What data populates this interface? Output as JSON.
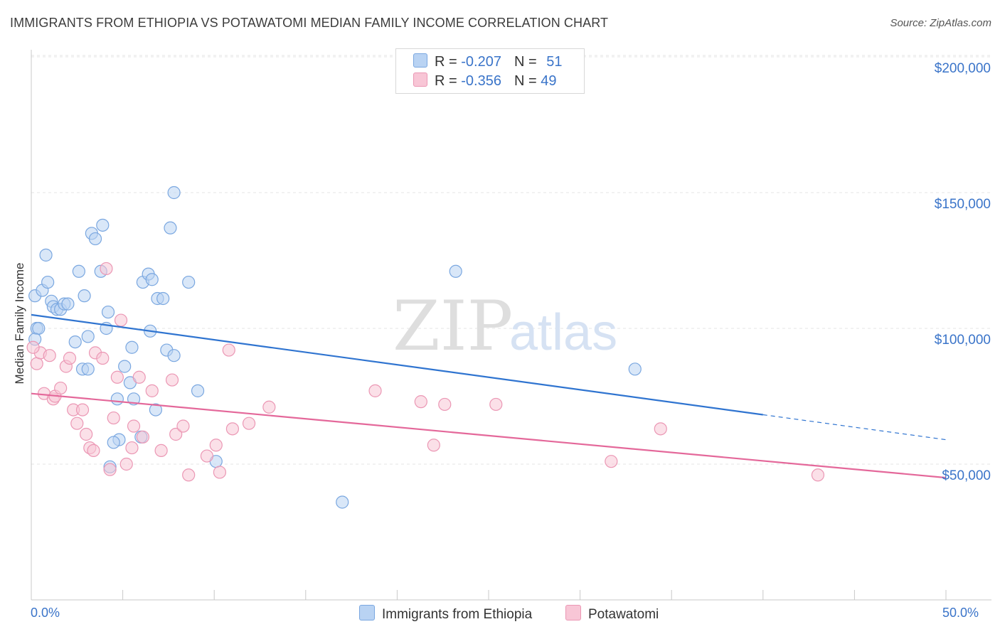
{
  "header": {
    "title": "IMMIGRANTS FROM ETHIOPIA VS POTAWATOMI MEDIAN FAMILY INCOME CORRELATION CHART",
    "source": "Source: ZipAtlas.com"
  },
  "watermark": {
    "zip": "ZIP",
    "atlas": "atlas"
  },
  "legend": {
    "rows": [
      {
        "r_label": "R = ",
        "r_value": "-0.207",
        "n_label": "N = ",
        "n_value": "51"
      },
      {
        "r_label": "R = ",
        "r_value": "-0.356",
        "n_label": "N = ",
        "n_value": "49"
      }
    ]
  },
  "colors": {
    "blue_fill": "#b9d3f3",
    "blue_stroke": "#7aa7e0",
    "blue_line": "#2f74d0",
    "pink_fill": "#f8c6d6",
    "pink_stroke": "#eb97b4",
    "pink_line": "#e4689a",
    "tick_text": "#3a74c9",
    "grid": "#e6e6e6"
  },
  "chart_data": {
    "type": "scatter",
    "title": "IMMIGRANTS FROM ETHIOPIA VS POTAWATOMI MEDIAN FAMILY INCOME CORRELATION CHART",
    "xlabel": "",
    "ylabel": "Median Family Income",
    "xlim": [
      0,
      50
    ],
    "ylim": [
      0,
      210000
    ],
    "x_tick_labels": [
      "0.0%",
      "50.0%"
    ],
    "y_ticks": [
      50000,
      100000,
      150000,
      200000
    ],
    "y_tick_labels": [
      "$50,000",
      "$100,000",
      "$150,000",
      "$200,000"
    ],
    "grid": true,
    "legend_position": "top-center",
    "series": [
      {
        "name": "Immigrants from Ethiopia",
        "color": "#b9d3f3",
        "points": [
          [
            0.2,
            112000
          ],
          [
            0.3,
            100000
          ],
          [
            0.4,
            100000
          ],
          [
            0.6,
            114000
          ],
          [
            0.8,
            127000
          ],
          [
            0.9,
            117000
          ],
          [
            1.1,
            110000
          ],
          [
            1.2,
            108000
          ],
          [
            1.4,
            107000
          ],
          [
            1.6,
            107000
          ],
          [
            1.8,
            109000
          ],
          [
            2.0,
            109000
          ],
          [
            2.4,
            95000
          ],
          [
            2.8,
            85000
          ],
          [
            2.9,
            112000
          ],
          [
            3.1,
            97000
          ],
          [
            2.6,
            121000
          ],
          [
            3.3,
            135000
          ],
          [
            3.5,
            133000
          ],
          [
            3.8,
            121000
          ],
          [
            3.9,
            138000
          ],
          [
            4.1,
            100000
          ],
          [
            4.2,
            106000
          ],
          [
            4.7,
            74000
          ],
          [
            4.8,
            59000
          ],
          [
            4.5,
            58000
          ],
          [
            5.1,
            86000
          ],
          [
            5.4,
            80000
          ],
          [
            5.5,
            93000
          ],
          [
            5.6,
            74000
          ],
          [
            6.0,
            60000
          ],
          [
            6.1,
            117000
          ],
          [
            6.4,
            120000
          ],
          [
            6.5,
            99000
          ],
          [
            6.6,
            118000
          ],
          [
            6.8,
            70000
          ],
          [
            6.9,
            111000
          ],
          [
            7.2,
            111000
          ],
          [
            7.4,
            92000
          ],
          [
            7.6,
            137000
          ],
          [
            7.8,
            90000
          ],
          [
            7.8,
            150000
          ],
          [
            8.6,
            117000
          ],
          [
            9.1,
            77000
          ],
          [
            10.1,
            51000
          ],
          [
            4.3,
            49000
          ],
          [
            17.0,
            36000
          ],
          [
            23.2,
            121000
          ],
          [
            33.0,
            85000
          ],
          [
            3.1,
            85000
          ],
          [
            0.2,
            96000
          ]
        ],
        "trend": {
          "x_start": 0,
          "y_start": 105000,
          "x_solid_end": 40,
          "x_end": 50,
          "y_end": 59000
        }
      },
      {
        "name": "Potawatomi",
        "color": "#f8c6d6",
        "points": [
          [
            0.3,
            87000
          ],
          [
            0.5,
            91000
          ],
          [
            0.7,
            76000
          ],
          [
            1.0,
            90000
          ],
          [
            1.2,
            74000
          ],
          [
            1.3,
            75000
          ],
          [
            1.6,
            78000
          ],
          [
            1.9,
            86000
          ],
          [
            2.1,
            89000
          ],
          [
            2.3,
            70000
          ],
          [
            2.5,
            65000
          ],
          [
            2.8,
            70000
          ],
          [
            3.0,
            61000
          ],
          [
            3.2,
            56000
          ],
          [
            3.4,
            55000
          ],
          [
            3.5,
            91000
          ],
          [
            3.9,
            89000
          ],
          [
            4.1,
            122000
          ],
          [
            4.3,
            48000
          ],
          [
            4.5,
            67000
          ],
          [
            4.7,
            82000
          ],
          [
            4.9,
            103000
          ],
          [
            5.2,
            50000
          ],
          [
            5.5,
            56000
          ],
          [
            5.6,
            64000
          ],
          [
            5.9,
            82000
          ],
          [
            6.1,
            60000
          ],
          [
            6.6,
            77000
          ],
          [
            7.1,
            55000
          ],
          [
            7.7,
            81000
          ],
          [
            7.9,
            61000
          ],
          [
            8.3,
            64000
          ],
          [
            8.6,
            46000
          ],
          [
            9.6,
            53000
          ],
          [
            10.1,
            57000
          ],
          [
            10.3,
            47000
          ],
          [
            10.8,
            92000
          ],
          [
            11.0,
            63000
          ],
          [
            11.9,
            65000
          ],
          [
            13.0,
            71000
          ],
          [
            18.8,
            77000
          ],
          [
            21.3,
            73000
          ],
          [
            22.0,
            57000
          ],
          [
            22.6,
            72000
          ],
          [
            25.4,
            72000
          ],
          [
            31.7,
            51000
          ],
          [
            34.4,
            63000
          ],
          [
            43.0,
            46000
          ],
          [
            0.1,
            93000
          ]
        ],
        "trend": {
          "x_start": 0,
          "y_start": 76000,
          "x_end": 50,
          "y_end": 45000
        }
      }
    ]
  },
  "bottom_legend": {
    "items": [
      {
        "label": "Immigrants from Ethiopia"
      },
      {
        "label": "Potawatomi"
      }
    ]
  }
}
